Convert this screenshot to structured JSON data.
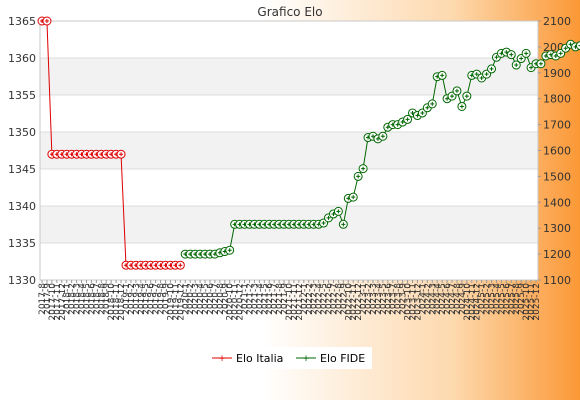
{
  "chart_data": {
    "type": "line",
    "title": "Grafico Elo",
    "legend_position": "bottom",
    "grid": true,
    "y_left": {
      "min": 1330,
      "max": 1365,
      "ticks": [
        1330,
        1335,
        1340,
        1345,
        1350,
        1355,
        1360,
        1365
      ]
    },
    "y_right": {
      "min": 1100,
      "max": 2100,
      "ticks": [
        1100,
        1200,
        1300,
        1400,
        1500,
        1600,
        1700,
        1800,
        1900,
        2000,
        2100
      ]
    },
    "x_labels": [
      "2017-8",
      "2017-9",
      "2017-10",
      "2017-11",
      "2017-12",
      "2018-1",
      "2018-2",
      "2018-3",
      "2018-4",
      "2018-5",
      "2018-6",
      "2018-7",
      "2018-8",
      "2018-9",
      "2018-10",
      "2018-11",
      "2018-12",
      "2019-1",
      "2019-2",
      "2019-3",
      "2019-4",
      "2019-5",
      "2019-6",
      "2019-7",
      "2019-8",
      "2019-9",
      "2019-10",
      "2019-11",
      "2019-12",
      "2020-1",
      "2020-2",
      "2020-3",
      "2020-4",
      "2020-5",
      "2020-6",
      "2020-7",
      "2020-8",
      "2020-9",
      "2020-10",
      "2020-11",
      "2020-12",
      "2021-1",
      "2021-2",
      "2021-3",
      "2021-4",
      "2021-5",
      "2021-6",
      "2021-7",
      "2021-8",
      "2021-9",
      "2021-10",
      "2021-11",
      "2021-12",
      "2022-1",
      "2022-2",
      "2022-3",
      "2022-4",
      "2022-5",
      "2022-6",
      "2022-7",
      "2022-8",
      "2022-9",
      "2022-10",
      "2022-11",
      "2022-12",
      "2023-1",
      "2023-2",
      "2023-3",
      "2023-4",
      "2023-5",
      "2023-6",
      "2023-7",
      "2023-8",
      "2023-9",
      "2023-10",
      "2023-11",
      "2023-12",
      "2024-1",
      "2024-2",
      "2024-3",
      "2024-4",
      "2024-5",
      "2024-6",
      "2024-7",
      "2024-8",
      "2024-9",
      "2024-10",
      "2024-11",
      "2024-12",
      "2025-1",
      "2025-2",
      "2025-3",
      "2025-4",
      "2025-5",
      "2025-6",
      "2025-7",
      "2025-8",
      "2025-9",
      "2025-10",
      "2025-11",
      "2025-12"
    ],
    "series": [
      {
        "name": "Elo Italia",
        "axis": "left",
        "color": "#dd0000",
        "start_index": 0,
        "values": [
          1365,
          1365,
          1347,
          1347,
          1347,
          1347,
          1347,
          1347,
          1347,
          1347,
          1347,
          1347,
          1347,
          1347,
          1347,
          1347,
          1347,
          1332,
          1332,
          1332,
          1332,
          1332,
          1332,
          1332,
          1332,
          1332,
          1332,
          1332,
          1332
        ]
      },
      {
        "name": "Elo FIDE",
        "axis": "right",
        "color": "#006600",
        "start_index": 29,
        "values": [
          1200,
          1200,
          1200,
          1200,
          1200,
          1200,
          1200,
          1205,
          1210,
          1215,
          1315,
          1315,
          1315,
          1315,
          1315,
          1315,
          1315,
          1315,
          1315,
          1315,
          1315,
          1315,
          1315,
          1315,
          1315,
          1315,
          1315,
          1315,
          1320,
          1340,
          1355,
          1365,
          1315,
          1415,
          1420,
          1500,
          1530,
          1650,
          1655,
          1645,
          1655,
          1690,
          1700,
          1700,
          1710,
          1720,
          1745,
          1735,
          1745,
          1765,
          1780,
          1885,
          1890,
          1800,
          1810,
          1830,
          1770,
          1810,
          1890,
          1895,
          1880,
          1895,
          1915,
          1960,
          1975,
          1980,
          1970,
          1930,
          1955,
          1975,
          1920,
          1935,
          1935,
          1965,
          1970,
          1965,
          1975,
          1995,
          2010,
          2000,
          2005,
          2000,
          2005,
          2005,
          2010,
          1980,
          1945,
          1980
        ]
      }
    ]
  }
}
